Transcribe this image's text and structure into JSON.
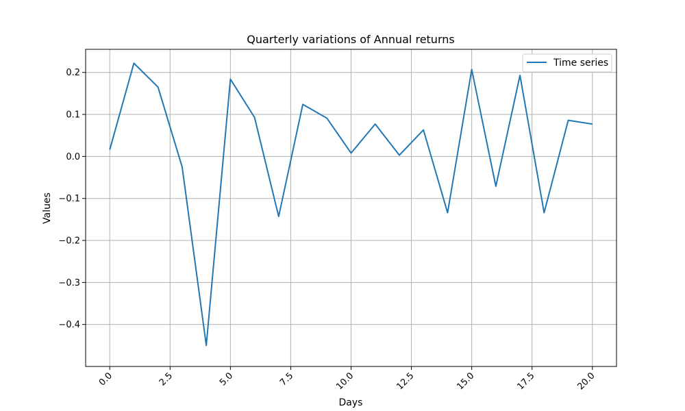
{
  "chart_data": {
    "type": "line",
    "title": "Quarterly variations of  Annual returns",
    "xlabel": "Days",
    "ylabel": "Values",
    "xlim": [
      -1.0,
      21.0
    ],
    "ylim": [
      -0.5,
      0.255
    ],
    "grid": true,
    "legend_position": "top-right",
    "x_ticks": [
      "0.0",
      "2.5",
      "5.0",
      "7.5",
      "10.0",
      "12.5",
      "15.0",
      "17.5",
      "20.0"
    ],
    "x_tick_values": [
      0,
      2.5,
      5,
      7.5,
      10,
      12.5,
      15,
      17.5,
      20
    ],
    "y_ticks": [
      "0.2",
      "0.1",
      "0.0",
      "−0.1",
      "−0.2",
      "−0.3",
      "−0.4"
    ],
    "y_tick_values": [
      0.2,
      0.1,
      0.0,
      -0.1,
      -0.2,
      -0.3,
      -0.4
    ],
    "x_tick_rotation": -45,
    "series": [
      {
        "name": "Time series",
        "color": "#1f77b4",
        "x": [
          0,
          1,
          2,
          3,
          4,
          5,
          6,
          7,
          8,
          9,
          10,
          11,
          12,
          13,
          14,
          15,
          16,
          17,
          18,
          19,
          20
        ],
        "values": [
          0.016,
          0.222,
          0.165,
          -0.025,
          -0.45,
          0.184,
          0.093,
          -0.143,
          0.124,
          0.091,
          0.008,
          0.077,
          0.003,
          0.063,
          -0.134,
          0.207,
          -0.071,
          0.193,
          -0.134,
          0.086,
          0.077
        ]
      }
    ]
  }
}
